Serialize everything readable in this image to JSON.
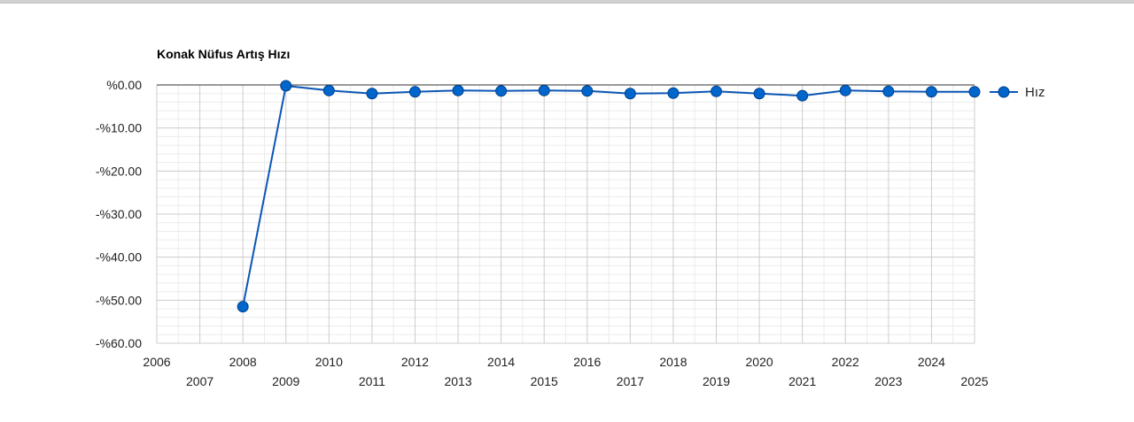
{
  "chart_data": {
    "type": "line",
    "title": "Konak Nüfus Artış Hızı",
    "xlabel": "",
    "ylabel": "",
    "xlim": [
      2006,
      2025
    ],
    "ylim": [
      -60,
      0
    ],
    "x_ticks": [
      2006,
      2007,
      2008,
      2009,
      2010,
      2011,
      2012,
      2013,
      2014,
      2015,
      2016,
      2017,
      2018,
      2019,
      2020,
      2021,
      2022,
      2023,
      2024,
      2025
    ],
    "y_ticks": [
      0,
      -10,
      -20,
      -30,
      -40,
      -50,
      -60
    ],
    "y_tick_labels": [
      "%0.00",
      "-%10.00",
      "-%20.00",
      "-%30.00",
      "-%40.00",
      "-%50.00",
      "-%60.00"
    ],
    "grid": true,
    "legend_position": "right",
    "colors": {
      "series": "#0a56b5",
      "marker": "#0066cc",
      "grid_major": "#cccccc",
      "grid_minor": "#ebebeb",
      "baseline": "#333333"
    },
    "series": [
      {
        "name": "Hız",
        "x": [
          2008,
          2009,
          2010,
          2011,
          2012,
          2013,
          2014,
          2015,
          2016,
          2017,
          2018,
          2019,
          2020,
          2021,
          2022,
          2023,
          2024,
          2025
        ],
        "values": [
          -51.5,
          -0.2,
          -1.3,
          -2.0,
          -1.6,
          -1.3,
          -1.4,
          -1.3,
          -1.4,
          -2.0,
          -1.9,
          -1.5,
          -2.0,
          -2.5,
          -1.3,
          -1.5,
          -1.6,
          -1.6
        ]
      }
    ]
  }
}
